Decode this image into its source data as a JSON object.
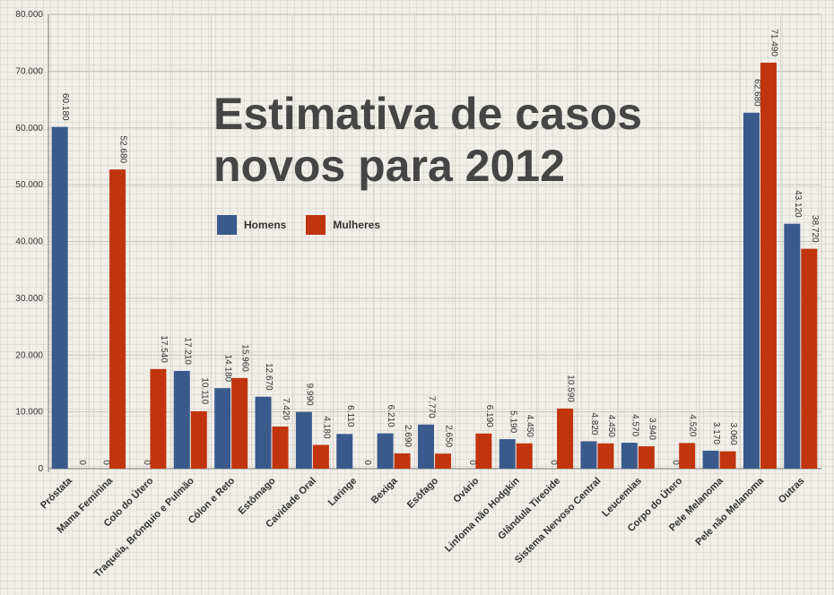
{
  "chart_data": {
    "type": "bar",
    "title_lines": [
      "Estimativa de casos",
      "novos para 2012"
    ],
    "categories": [
      "Próstata",
      "Mama Feminina",
      "Colo do Útero",
      "Traqueia, Brônquio e Pulmão",
      "Cólon e Reto",
      "Estômago",
      "Cavidade Oral",
      "Laringe",
      "Bexiga",
      "Esôfago",
      "Ovário",
      "Linfoma não Hodgkin",
      "Glândula Tireoide",
      "Sistema Nervoso Central",
      "Leucemias",
      "Corpo do Útero",
      "Pele Melanoma",
      "Pele não Melanoma",
      "Outras"
    ],
    "series": [
      {
        "name": "Homens",
        "color": "#3b5a8c",
        "values": [
          60180,
          0,
          0,
          17210,
          14180,
          12670,
          9990,
          6110,
          6210,
          7770,
          0,
          5190,
          0,
          4820,
          4570,
          0,
          3170,
          62680,
          43120
        ],
        "labels": [
          "60.180",
          "0",
          "0",
          "17.210",
          "14.180",
          "12.670",
          "9.990",
          "6.110",
          "6.210",
          "7.770",
          "0",
          "5.190",
          "0",
          "4.820",
          "4.570",
          "0",
          "3.170",
          "62.680",
          "43.120"
        ]
      },
      {
        "name": "Mulheres",
        "color": "#c0350e",
        "values": [
          0,
          52680,
          17540,
          10110,
          15960,
          7420,
          4180,
          0,
          2690,
          2650,
          6190,
          4450,
          10590,
          4450,
          3940,
          4520,
          3060,
          71490,
          38720
        ],
        "labels": [
          "0",
          "52.680",
          "17.540",
          "10.110",
          "15.960",
          "7.420",
          "4.180",
          "0",
          "2.690",
          "2.650",
          "6.190",
          "4.450",
          "10.590",
          "4.450",
          "3.940",
          "4.520",
          "3.060",
          "71.490",
          "38.720"
        ]
      }
    ],
    "yticks": [
      0,
      10000,
      20000,
      30000,
      40000,
      50000,
      60000,
      70000,
      80000
    ],
    "ytick_labels": [
      "0",
      "10.000",
      "20.000",
      "30.000",
      "40.000",
      "50.000",
      "60.000",
      "70.000",
      "80.000"
    ],
    "ylim": [
      0,
      80000
    ],
    "xlabel": "",
    "ylabel": "",
    "legend_position": "top-left inside plot",
    "grid": true
  }
}
